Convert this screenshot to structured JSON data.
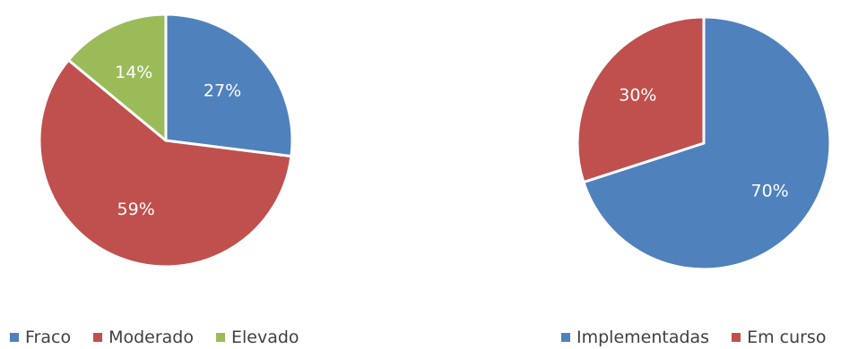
{
  "chart_data": [
    {
      "type": "pie",
      "slices": [
        {
          "label": "Fraco",
          "value": 27,
          "display": "27%",
          "color": "#4F81BD"
        },
        {
          "label": "Moderado",
          "value": 59,
          "display": "59%",
          "color": "#C0504D"
        },
        {
          "label": "Elevado",
          "value": 14,
          "display": "14%",
          "color": "#9BBB59"
        }
      ],
      "legend_position": "bottom",
      "label_color": "#ffffff"
    },
    {
      "type": "pie",
      "slices": [
        {
          "label": "Implementadas",
          "value": 70,
          "display": "70%",
          "color": "#4F81BD"
        },
        {
          "label": "Em curso",
          "value": 30,
          "display": "30%",
          "color": "#C0504D"
        }
      ],
      "legend_position": "bottom",
      "label_color": "#ffffff"
    }
  ]
}
